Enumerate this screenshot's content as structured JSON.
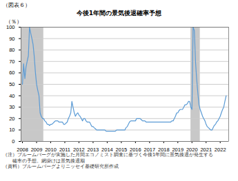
{
  "chart_data": {
    "type": "line",
    "title": "今後1年間の景気後退確率予想",
    "subtitle": "（図表６）",
    "ylabel": "（％）",
    "annotations": [
      "（注）ブルームバーグが実施した月間エコノミスト調査に基づく今後1年間に景気後退が発生する",
      "　　確率の予想。網掛けは景気後退期",
      "（資料）ブルームバーグよりニッセイ基礎研究所作成"
    ],
    "color": "#5b9bd5",
    "grid": "y",
    "xlim": [
      2007.9,
      2022.6
    ],
    "xticks": [
      2008,
      2009,
      2010,
      2011,
      2012,
      2013,
      2014,
      2015,
      2016,
      2017,
      2018,
      2019,
      2020,
      2021,
      2022
    ],
    "ylim": [
      0,
      100
    ],
    "yticks": [
      0,
      10,
      20,
      30,
      40,
      50,
      60,
      70,
      80,
      90,
      100
    ],
    "recession_bands": {
      "ranges": [
        [
          2007.9,
          2009.5
        ],
        [
          2019.92,
          2020.58
        ]
      ],
      "color": "#c8c8c8"
    },
    "x": [
      2008.0,
      2008.08,
      2008.17,
      2008.25,
      2008.33,
      2008.42,
      2008.5,
      2008.58,
      2008.67,
      2008.75,
      2008.83,
      2008.92,
      2009.0,
      2009.08,
      2009.17,
      2009.25,
      2009.33,
      2009.42,
      2009.5,
      2009.58,
      2009.67,
      2009.75,
      2009.83,
      2009.92,
      2010.0,
      2010.08,
      2010.17,
      2010.25,
      2010.33,
      2010.42,
      2010.5,
      2010.58,
      2010.67,
      2010.75,
      2010.83,
      2010.92,
      2011.0,
      2011.08,
      2011.17,
      2011.25,
      2011.33,
      2011.42,
      2011.5,
      2011.58,
      2011.67,
      2011.75,
      2011.83,
      2011.92,
      2012.0,
      2012.08,
      2012.17,
      2012.25,
      2012.33,
      2012.42,
      2012.5,
      2012.58,
      2012.67,
      2012.75,
      2012.83,
      2012.92,
      2013.0,
      2013.08,
      2013.17,
      2013.25,
      2013.33,
      2013.42,
      2013.5,
      2013.58,
      2013.67,
      2013.75,
      2013.83,
      2013.92,
      2014.0,
      2014.08,
      2014.17,
      2014.25,
      2014.33,
      2014.42,
      2014.5,
      2014.58,
      2014.67,
      2014.75,
      2014.83,
      2014.92,
      2015.0,
      2015.08,
      2015.17,
      2015.25,
      2015.33,
      2015.42,
      2015.5,
      2015.58,
      2015.67,
      2015.75,
      2015.83,
      2015.92,
      2016.0,
      2016.08,
      2016.17,
      2016.25,
      2016.33,
      2016.42,
      2016.5,
      2016.58,
      2016.67,
      2016.75,
      2016.83,
      2016.92,
      2017.0,
      2017.08,
      2017.17,
      2017.25,
      2017.33,
      2017.42,
      2017.5,
      2017.58,
      2017.67,
      2017.75,
      2017.83,
      2017.92,
      2018.0,
      2018.08,
      2018.17,
      2018.25,
      2018.33,
      2018.42,
      2018.5,
      2018.58,
      2018.67,
      2018.75,
      2018.83,
      2018.92,
      2019.0,
      2019.08,
      2019.17,
      2019.25,
      2019.33,
      2019.42,
      2019.5,
      2019.58,
      2019.67,
      2019.75,
      2019.83,
      2019.92,
      2020.0,
      2020.08,
      2020.17,
      2020.25,
      2020.33,
      2020.42,
      2020.5,
      2020.58,
      2020.67,
      2020.75,
      2020.83,
      2020.92,
      2021.0,
      2021.08,
      2021.17,
      2021.25,
      2021.33,
      2021.42,
      2021.5,
      2021.58,
      2021.67,
      2021.75,
      2021.83,
      2021.92,
      2022.0,
      2022.08,
      2022.17,
      2022.25,
      2022.33,
      2022.42
    ],
    "values": [
      50,
      68,
      55,
      65,
      70,
      75,
      100,
      95,
      90,
      85,
      75,
      60,
      50,
      45,
      40,
      25,
      22,
      20,
      20,
      18,
      17,
      15,
      15,
      14,
      15,
      15,
      16,
      17,
      18,
      18,
      18,
      17,
      17,
      17,
      17,
      15,
      15,
      16,
      17,
      20,
      22,
      25,
      35,
      30,
      25,
      22,
      24,
      25,
      23,
      22,
      20,
      18,
      20,
      20,
      18,
      17,
      17,
      17,
      15,
      13,
      13,
      12,
      11,
      10,
      10,
      10,
      10,
      10,
      10,
      10,
      10,
      9,
      9,
      9,
      9,
      9,
      9,
      9,
      9,
      9,
      10,
      10,
      10,
      10,
      10,
      10,
      10,
      10,
      12,
      13,
      15,
      17,
      18,
      18,
      18,
      18,
      18,
      20,
      20,
      20,
      20,
      19,
      18,
      18,
      18,
      17,
      17,
      17,
      17,
      17,
      17,
      17,
      17,
      17,
      17,
      17,
      17,
      17,
      17,
      17,
      17,
      17,
      17,
      17,
      17,
      17,
      17,
      18,
      18,
      20,
      22,
      25,
      25,
      27,
      28,
      28,
      28,
      30,
      32,
      32,
      33,
      35,
      35,
      30,
      28,
      100,
      97,
      70,
      55,
      42,
      32,
      28,
      25,
      22,
      20,
      18,
      15,
      13,
      12,
      11,
      10,
      10,
      12,
      14,
      15,
      17,
      18,
      20,
      22,
      25,
      28,
      30,
      35,
      40
    ]
  }
}
